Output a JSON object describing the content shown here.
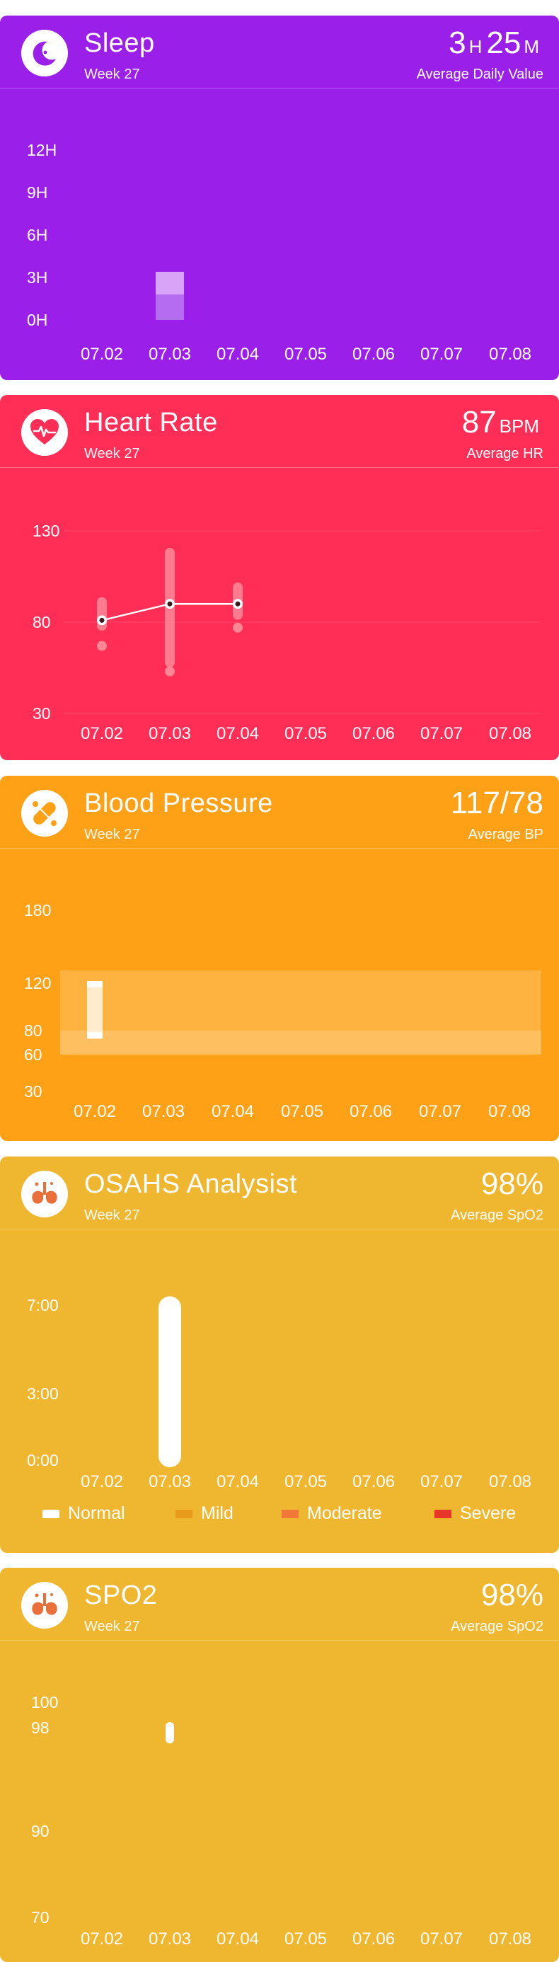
{
  "colors": {
    "sleep": "#9a1fe9",
    "heart": "#ff2e56",
    "bp": "#fea117",
    "osahs": "#efb72f",
    "spo2": "#efb72f"
  },
  "sleep": {
    "title": "Sleep",
    "week": "Week 27",
    "value_hours": "3",
    "unit_h": "H",
    "value_minutes": "25",
    "unit_m": "M",
    "label": "Average Daily Value",
    "icon": "moon-icon"
  },
  "heart": {
    "title": "Heart Rate",
    "week": "Week 27",
    "value": "87",
    "unit": "BPM",
    "label": "Average HR",
    "icon": "heart-pulse-icon"
  },
  "bp": {
    "title": "Blood Pressure",
    "week": "Week 27",
    "value": "117/78",
    "label": "Average BP",
    "icon": "pill-capsule-icon"
  },
  "osahs": {
    "title": "OSAHS Analysist",
    "week": "Week 27",
    "value": "98%",
    "label": "Average SpO2",
    "icon": "lungs-icon",
    "legend": [
      {
        "label": "Normal",
        "color": "#ffffff"
      },
      {
        "label": "Mild",
        "color": "#e89a1a"
      },
      {
        "label": "Moderate",
        "color": "#f2783a"
      },
      {
        "label": "Severe",
        "color": "#e8352a"
      }
    ]
  },
  "spo2": {
    "title": "SPO2",
    "week": "Week 27",
    "value": "98%",
    "label": "Average SpO2",
    "icon": "lungs-icon"
  },
  "chart_data": [
    {
      "id": "sleep",
      "type": "bar",
      "categories": [
        "07.02",
        "07.03",
        "07.04",
        "07.05",
        "07.06",
        "07.07",
        "07.08"
      ],
      "y_ticks": [
        {
          "v": 12,
          "label": "12H"
        },
        {
          "v": 9,
          "label": "9H"
        },
        {
          "v": 6,
          "label": "6H"
        },
        {
          "v": 3,
          "label": "3H"
        },
        {
          "v": 0,
          "label": "0H"
        }
      ],
      "ylim": [
        0,
        12
      ],
      "segments": [
        {
          "category": "07.03",
          "from": 1.8,
          "to": 3.4,
          "shade": "light"
        },
        {
          "category": "07.03",
          "from": 0,
          "to": 1.8,
          "shade": "dark"
        }
      ]
    },
    {
      "id": "heart",
      "type": "line",
      "categories": [
        "07.02",
        "07.03",
        "07.04",
        "07.05",
        "07.06",
        "07.07",
        "07.08"
      ],
      "y_ticks": [
        {
          "v": 130,
          "label": "130"
        },
        {
          "v": 80,
          "label": "80"
        },
        {
          "v": 30,
          "label": "30"
        }
      ],
      "ylim": [
        30,
        130
      ],
      "average": [
        {
          "category": "07.02",
          "value": 81
        },
        {
          "category": "07.03",
          "value": 90
        },
        {
          "category": "07.04",
          "value": 90
        }
      ],
      "ranges": [
        {
          "category": "07.02",
          "min": 78,
          "max": 91
        },
        {
          "category": "07.03",
          "min": 58,
          "max": 118
        },
        {
          "category": "07.04",
          "min": 84,
          "max": 99
        }
      ],
      "points": [
        {
          "category": "07.02",
          "value": 67
        },
        {
          "category": "07.03",
          "value": 53
        },
        {
          "category": "07.04",
          "value": 77
        }
      ]
    },
    {
      "id": "bp",
      "type": "bar",
      "categories": [
        "07.02",
        "07.03",
        "07.04",
        "07.05",
        "07.06",
        "07.07",
        "07.08"
      ],
      "y_ticks": [
        {
          "v": 180,
          "label": "180"
        },
        {
          "v": 120,
          "label": "120"
        },
        {
          "v": 80,
          "label": "80"
        },
        {
          "v": 60,
          "label": "60"
        },
        {
          "v": 30,
          "label": "30"
        }
      ],
      "ylim": [
        30,
        180
      ],
      "reference_bands": [
        {
          "from": 80,
          "to": 130,
          "shade": "upper"
        },
        {
          "from": 60,
          "to": 80,
          "shade": "lower"
        }
      ],
      "readings": [
        {
          "category": "07.02",
          "systolic": 117,
          "diastolic": 78
        }
      ]
    },
    {
      "id": "osahs",
      "type": "bar",
      "categories": [
        "07.02",
        "07.03",
        "07.04",
        "07.05",
        "07.06",
        "07.07",
        "07.08"
      ],
      "y_ticks": [
        {
          "v": 7,
          "label": "7:00"
        },
        {
          "v": 3,
          "label": "3:00"
        },
        {
          "v": 0,
          "label": "0:00"
        }
      ],
      "ylim": [
        0,
        7
      ],
      "series": [
        {
          "name": "Normal",
          "values": [
            0,
            7.4,
            0,
            0,
            0,
            0,
            0
          ]
        }
      ]
    },
    {
      "id": "spo2",
      "type": "scatter",
      "categories": [
        "07.02",
        "07.03",
        "07.04",
        "07.05",
        "07.06",
        "07.07",
        "07.08"
      ],
      "y_ticks": [
        {
          "v": 100,
          "label": "100"
        },
        {
          "v": 98,
          "label": "98"
        },
        {
          "v": 90,
          "label": "90"
        },
        {
          "v": 70,
          "label": "70"
        }
      ],
      "points": [
        {
          "category": "07.03",
          "min": 97,
          "max": 98
        }
      ]
    }
  ]
}
